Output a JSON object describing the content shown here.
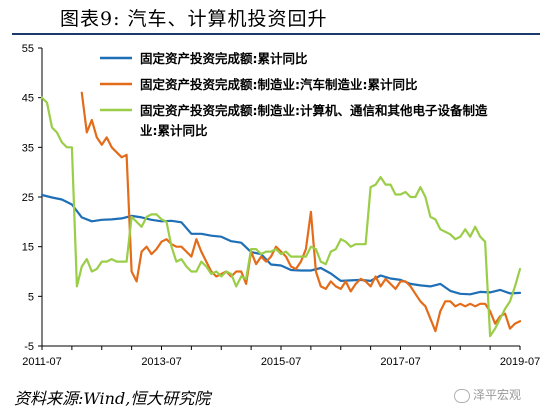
{
  "header": {
    "figure_title": "图表9:   汽车、计算机投资回升"
  },
  "footer": {
    "source": "资料来源:Wind,恒大研究院",
    "watermark": "泽平宏观"
  },
  "icons": {
    "watermark": "wechat-icon"
  },
  "colors": {
    "title_rule": "#1a3a6b",
    "series_total": "#1f6fb7",
    "series_auto": "#e36c1a",
    "series_computer": "#9acd48"
  },
  "chart_data": {
    "type": "line",
    "title": "",
    "xlabel": "",
    "ylabel": "",
    "ylim": [
      -5,
      55
    ],
    "yticks": [
      -5,
      5,
      15,
      25,
      35,
      45,
      55
    ],
    "yticklabels": [
      "-5",
      "5",
      "15",
      "25",
      "35",
      "45",
      "55"
    ],
    "xlim": [
      "2011-07",
      "2019-07"
    ],
    "xticklabels": [
      "2011-07",
      "2013-07",
      "2015-07",
      "2017-07",
      "2019-07"
    ],
    "grid": false,
    "legend_position": "top-left",
    "series": [
      {
        "name": "固定资产投资完成额:累计同比",
        "color": "#1f6fb7",
        "points": [
          [
            "2011-07",
            25.4
          ],
          [
            "2011-09",
            24.9
          ],
          [
            "2011-11",
            24.5
          ],
          [
            "2012-01",
            23.5
          ],
          [
            "2012-03",
            20.9
          ],
          [
            "2012-05",
            20.1
          ],
          [
            "2012-07",
            20.4
          ],
          [
            "2012-09",
            20.5
          ],
          [
            "2012-11",
            20.7
          ],
          [
            "2013-01",
            21.2
          ],
          [
            "2013-03",
            20.9
          ],
          [
            "2013-05",
            20.4
          ],
          [
            "2013-07",
            20.1
          ],
          [
            "2013-09",
            20.2
          ],
          [
            "2013-11",
            19.9
          ],
          [
            "2014-01",
            17.6
          ],
          [
            "2014-03",
            17.6
          ],
          [
            "2014-05",
            17.2
          ],
          [
            "2014-07",
            17.0
          ],
          [
            "2014-09",
            16.1
          ],
          [
            "2014-11",
            15.8
          ],
          [
            "2015-01",
            13.9
          ],
          [
            "2015-03",
            13.5
          ],
          [
            "2015-05",
            11.4
          ],
          [
            "2015-07",
            11.2
          ],
          [
            "2015-09",
            10.3
          ],
          [
            "2015-11",
            10.2
          ],
          [
            "2016-01",
            10.2
          ],
          [
            "2016-03",
            10.7
          ],
          [
            "2016-05",
            9.6
          ],
          [
            "2016-07",
            8.1
          ],
          [
            "2016-09",
            8.2
          ],
          [
            "2016-11",
            8.3
          ],
          [
            "2017-01",
            8.1
          ],
          [
            "2017-03",
            9.2
          ],
          [
            "2017-05",
            8.6
          ],
          [
            "2017-07",
            8.3
          ],
          [
            "2017-09",
            7.5
          ],
          [
            "2017-11",
            7.2
          ],
          [
            "2018-01",
            7.0
          ],
          [
            "2018-03",
            7.5
          ],
          [
            "2018-05",
            6.1
          ],
          [
            "2018-07",
            5.5
          ],
          [
            "2018-09",
            5.4
          ],
          [
            "2018-11",
            5.9
          ],
          [
            "2019-01",
            5.8
          ],
          [
            "2019-03",
            6.3
          ],
          [
            "2019-05",
            5.6
          ],
          [
            "2019-07",
            5.7
          ]
        ]
      },
      {
        "name": "固定资产投资完成额:制造业:汽车制造业:累计同比",
        "color": "#e36c1a",
        "points": [
          [
            "2012-03",
            46.0
          ],
          [
            "2012-04",
            38.0
          ],
          [
            "2012-05",
            40.5
          ],
          [
            "2012-06",
            37.0
          ],
          [
            "2012-07",
            35.5
          ],
          [
            "2012-08",
            37.0
          ],
          [
            "2012-09",
            35.0
          ],
          [
            "2012-10",
            34.0
          ],
          [
            "2012-11",
            33.0
          ],
          [
            "2012-12",
            33.5
          ],
          [
            "2013-01",
            10.0
          ],
          [
            "2013-02",
            8.0
          ],
          [
            "2013-03",
            14.0
          ],
          [
            "2013-04",
            15.0
          ],
          [
            "2013-05",
            13.5
          ],
          [
            "2013-06",
            14.5
          ],
          [
            "2013-07",
            16.0
          ],
          [
            "2013-08",
            16.5
          ],
          [
            "2013-09",
            15.5
          ],
          [
            "2013-10",
            15.0
          ],
          [
            "2013-11",
            15.0
          ],
          [
            "2013-12",
            14.0
          ],
          [
            "2014-01",
            13.0
          ],
          [
            "2014-02",
            16.5
          ],
          [
            "2014-03",
            14.0
          ],
          [
            "2014-04",
            12.0
          ],
          [
            "2014-05",
            10.0
          ],
          [
            "2014-06",
            9.0
          ],
          [
            "2014-07",
            9.5
          ],
          [
            "2014-08",
            10.0
          ],
          [
            "2014-09",
            9.0
          ],
          [
            "2014-10",
            10.0
          ],
          [
            "2014-11",
            10.0
          ],
          [
            "2014-12",
            7.5
          ],
          [
            "2015-01",
            14.0
          ],
          [
            "2015-02",
            11.5
          ],
          [
            "2015-03",
            13.0
          ],
          [
            "2015-04",
            12.0
          ],
          [
            "2015-05",
            13.0
          ],
          [
            "2015-06",
            15.0
          ],
          [
            "2015-07",
            14.0
          ],
          [
            "2015-08",
            13.0
          ],
          [
            "2015-09",
            11.0
          ],
          [
            "2015-10",
            10.5
          ],
          [
            "2015-11",
            12.0
          ],
          [
            "2015-12",
            14.5
          ],
          [
            "2016-01",
            22.0
          ],
          [
            "2016-02",
            10.0
          ],
          [
            "2016-03",
            7.0
          ],
          [
            "2016-04",
            6.5
          ],
          [
            "2016-05",
            8.0
          ],
          [
            "2016-06",
            7.0
          ],
          [
            "2016-07",
            6.5
          ],
          [
            "2016-08",
            8.0
          ],
          [
            "2016-09",
            6.0
          ],
          [
            "2016-10",
            7.5
          ],
          [
            "2016-11",
            8.5
          ],
          [
            "2016-12",
            8.0
          ],
          [
            "2017-01",
            7.0
          ],
          [
            "2017-02",
            9.0
          ],
          [
            "2017-03",
            7.0
          ],
          [
            "2017-04",
            8.5
          ],
          [
            "2017-05",
            7.5
          ],
          [
            "2017-06",
            6.5
          ],
          [
            "2017-07",
            8.0
          ],
          [
            "2017-08",
            8.0
          ],
          [
            "2017-09",
            7.0
          ],
          [
            "2017-10",
            5.5
          ],
          [
            "2017-11",
            4.0
          ],
          [
            "2017-12",
            3.0
          ],
          [
            "2018-01",
            0.5
          ],
          [
            "2018-02",
            -2.0
          ],
          [
            "2018-03",
            2.0
          ],
          [
            "2018-04",
            4.0
          ],
          [
            "2018-05",
            4.0
          ],
          [
            "2018-06",
            3.0
          ],
          [
            "2018-07",
            3.5
          ],
          [
            "2018-08",
            3.0
          ],
          [
            "2018-09",
            3.5
          ],
          [
            "2018-10",
            3.0
          ],
          [
            "2018-11",
            3.5
          ],
          [
            "2018-12",
            3.5
          ],
          [
            "2019-01",
            2.0
          ],
          [
            "2019-02",
            -0.5
          ],
          [
            "2019-03",
            1.0
          ],
          [
            "2019-04",
            1.5
          ],
          [
            "2019-05",
            -1.5
          ],
          [
            "2019-06",
            -0.5
          ],
          [
            "2019-07",
            0.0
          ]
        ]
      },
      {
        "name": "固定资产投资完成额:制造业:计算机、通信和其他电子设备制造业:累计同比",
        "color": "#9acd48",
        "points": [
          [
            "2011-07",
            45.0
          ],
          [
            "2011-08",
            44.0
          ],
          [
            "2011-09",
            39.0
          ],
          [
            "2011-10",
            38.0
          ],
          [
            "2011-11",
            36.0
          ],
          [
            "2011-12",
            35.0
          ],
          [
            "2012-01",
            35.0
          ],
          [
            "2012-02",
            7.0
          ],
          [
            "2012-03",
            11.0
          ],
          [
            "2012-04",
            12.5
          ],
          [
            "2012-05",
            10.0
          ],
          [
            "2012-06",
            10.5
          ],
          [
            "2012-07",
            12.0
          ],
          [
            "2012-08",
            12.0
          ],
          [
            "2012-09",
            12.5
          ],
          [
            "2012-10",
            12.0
          ],
          [
            "2012-11",
            12.0
          ],
          [
            "2012-12",
            12.0
          ],
          [
            "2013-01",
            21.0
          ],
          [
            "2013-02",
            20.0
          ],
          [
            "2013-03",
            19.0
          ],
          [
            "2013-04",
            21.0
          ],
          [
            "2013-05",
            21.5
          ],
          [
            "2013-06",
            21.5
          ],
          [
            "2013-07",
            20.5
          ],
          [
            "2013-08",
            20.0
          ],
          [
            "2013-09",
            15.0
          ],
          [
            "2013-10",
            12.0
          ],
          [
            "2013-11",
            12.5
          ],
          [
            "2013-12",
            11.0
          ],
          [
            "2014-01",
            10.0
          ],
          [
            "2014-02",
            10.0
          ],
          [
            "2014-03",
            12.0
          ],
          [
            "2014-04",
            11.0
          ],
          [
            "2014-05",
            9.5
          ],
          [
            "2014-06",
            10.0
          ],
          [
            "2014-07",
            9.0
          ],
          [
            "2014-08",
            10.0
          ],
          [
            "2014-09",
            9.5
          ],
          [
            "2014-10",
            7.0
          ],
          [
            "2014-11",
            9.0
          ],
          [
            "2014-12",
            8.5
          ],
          [
            "2015-01",
            14.5
          ],
          [
            "2015-02",
            14.5
          ],
          [
            "2015-03",
            13.5
          ],
          [
            "2015-04",
            14.0
          ],
          [
            "2015-05",
            14.0
          ],
          [
            "2015-06",
            14.5
          ],
          [
            "2015-07",
            13.5
          ],
          [
            "2015-08",
            14.0
          ],
          [
            "2015-09",
            13.0
          ],
          [
            "2015-10",
            13.0
          ],
          [
            "2015-11",
            13.0
          ],
          [
            "2015-12",
            13.0
          ],
          [
            "2016-01",
            15.0
          ],
          [
            "2016-02",
            14.5
          ],
          [
            "2016-03",
            12.0
          ],
          [
            "2016-04",
            11.5
          ],
          [
            "2016-05",
            14.0
          ],
          [
            "2016-06",
            14.5
          ],
          [
            "2016-07",
            16.5
          ],
          [
            "2016-08",
            16.0
          ],
          [
            "2016-09",
            15.0
          ],
          [
            "2016-10",
            15.5
          ],
          [
            "2016-11",
            15.5
          ],
          [
            "2016-12",
            15.5
          ],
          [
            "2017-01",
            27.0
          ],
          [
            "2017-02",
            27.5
          ],
          [
            "2017-03",
            29.0
          ],
          [
            "2017-04",
            27.5
          ],
          [
            "2017-05",
            27.5
          ],
          [
            "2017-06",
            25.5
          ],
          [
            "2017-07",
            25.5
          ],
          [
            "2017-08",
            26.0
          ],
          [
            "2017-09",
            25.0
          ],
          [
            "2017-10",
            25.0
          ],
          [
            "2017-11",
            27.0
          ],
          [
            "2017-12",
            25.0
          ],
          [
            "2018-01",
            21.0
          ],
          [
            "2018-02",
            20.5
          ],
          [
            "2018-03",
            18.5
          ],
          [
            "2018-04",
            18.0
          ],
          [
            "2018-05",
            17.5
          ],
          [
            "2018-06",
            16.5
          ],
          [
            "2018-07",
            17.0
          ],
          [
            "2018-08",
            18.5
          ],
          [
            "2018-09",
            17.0
          ],
          [
            "2018-10",
            19.0
          ],
          [
            "2018-11",
            17.0
          ],
          [
            "2018-12",
            16.0
          ],
          [
            "2019-01",
            -3.0
          ],
          [
            "2019-02",
            -1.5
          ],
          [
            "2019-03",
            0.5
          ],
          [
            "2019-04",
            2.5
          ],
          [
            "2019-05",
            4.0
          ],
          [
            "2019-06",
            7.0
          ],
          [
            "2019-07",
            10.5
          ]
        ]
      }
    ]
  }
}
